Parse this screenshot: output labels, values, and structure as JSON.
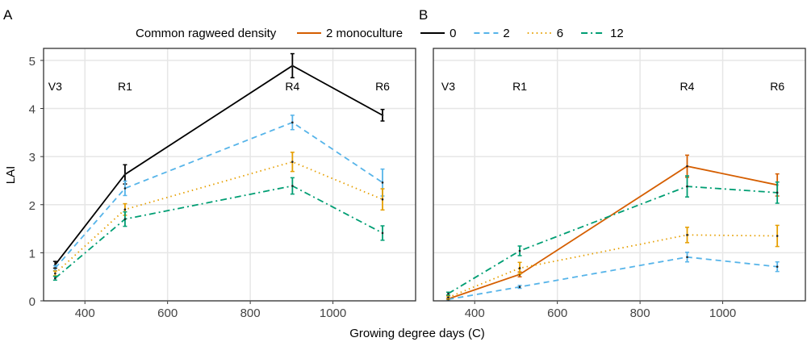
{
  "chart_data": [
    {
      "type": "line",
      "panel_label": "A",
      "xlabel": "Growing degree days (C)",
      "ylabel": "LAI",
      "xlim": [
        300,
        1200
      ],
      "ylim": [
        0,
        5.25
      ],
      "xticks": [
        400,
        600,
        800,
        1000
      ],
      "yticks": [
        0,
        1,
        2,
        3,
        4,
        5
      ],
      "grid": true,
      "stages": [
        {
          "label": "V3",
          "x": 328
        },
        {
          "label": "R1",
          "x": 497
        },
        {
          "label": "R4",
          "x": 902
        },
        {
          "label": "R6",
          "x": 1120
        }
      ],
      "series": [
        {
          "name": "0",
          "color": "#000000",
          "dash": "solid",
          "x": [
            328,
            497,
            902,
            1120
          ],
          "y": [
            0.75,
            2.63,
            4.89,
            3.86
          ],
          "err": [
            0.07,
            0.2,
            0.25,
            0.12
          ]
        },
        {
          "name": "2",
          "color": "#56B4E9",
          "dash": "dashed",
          "x": [
            328,
            497,
            902,
            1120
          ],
          "y": [
            0.68,
            2.34,
            3.71,
            2.46
          ],
          "err": [
            0.05,
            0.15,
            0.15,
            0.28
          ]
        },
        {
          "name": "6",
          "color": "#E69F00",
          "dash": "dotted",
          "x": [
            328,
            497,
            902,
            1120
          ],
          "y": [
            0.57,
            1.9,
            2.89,
            2.11
          ],
          "err": [
            0.05,
            0.12,
            0.2,
            0.22
          ]
        },
        {
          "name": "12",
          "color": "#009E73",
          "dash": "dotdash",
          "x": [
            328,
            497,
            902,
            1120
          ],
          "y": [
            0.47,
            1.7,
            2.39,
            1.41
          ],
          "err": [
            0.04,
            0.15,
            0.17,
            0.15
          ]
        }
      ]
    },
    {
      "type": "line",
      "panel_label": "B",
      "xlabel": "Growing degree days (C)",
      "xlim": [
        300,
        1200
      ],
      "ylim": [
        0,
        5.25
      ],
      "xticks": [
        400,
        600,
        800,
        1000
      ],
      "yticks": [
        0,
        1,
        2,
        3,
        4,
        5
      ],
      "grid": true,
      "stages": [
        {
          "label": "V3",
          "x": 336
        },
        {
          "label": "R1",
          "x": 509
        },
        {
          "label": "R4",
          "x": 914
        },
        {
          "label": "R6",
          "x": 1132
        }
      ],
      "series": [
        {
          "name": "2 monoculture",
          "color": "#D55E00",
          "dash": "solid",
          "x": [
            336,
            509,
            914,
            1132
          ],
          "y": [
            0.04,
            0.55,
            2.8,
            2.41
          ],
          "err": [
            0.02,
            0.05,
            0.23,
            0.23
          ]
        },
        {
          "name": "2",
          "color": "#56B4E9",
          "dash": "dashed",
          "x": [
            336,
            509,
            914,
            1132
          ],
          "y": [
            0.03,
            0.29,
            0.91,
            0.71
          ],
          "err": [
            0.02,
            0.03,
            0.1,
            0.1
          ]
        },
        {
          "name": "6",
          "color": "#E69F00",
          "dash": "dotted",
          "x": [
            336,
            509,
            914,
            1132
          ],
          "y": [
            0.07,
            0.68,
            1.37,
            1.35
          ],
          "err": [
            0.03,
            0.12,
            0.16,
            0.22
          ]
        },
        {
          "name": "12",
          "color": "#009E73",
          "dash": "dotdash",
          "x": [
            336,
            509,
            914,
            1132
          ],
          "y": [
            0.15,
            1.04,
            2.38,
            2.25
          ],
          "err": [
            0.03,
            0.1,
            0.22,
            0.22
          ]
        }
      ]
    }
  ],
  "legend": {
    "title": "Common ragweed density",
    "position": "top",
    "items": [
      {
        "label": "2 monoculture",
        "color": "#D55E00",
        "dash": "solid"
      },
      {
        "label": "0",
        "color": "#000000",
        "dash": "solid"
      },
      {
        "label": "2",
        "color": "#56B4E9",
        "dash": "dashed"
      },
      {
        "label": "6",
        "color": "#E69F00",
        "dash": "dotted"
      },
      {
        "label": "12",
        "color": "#009E73",
        "dash": "dotdash"
      }
    ]
  }
}
